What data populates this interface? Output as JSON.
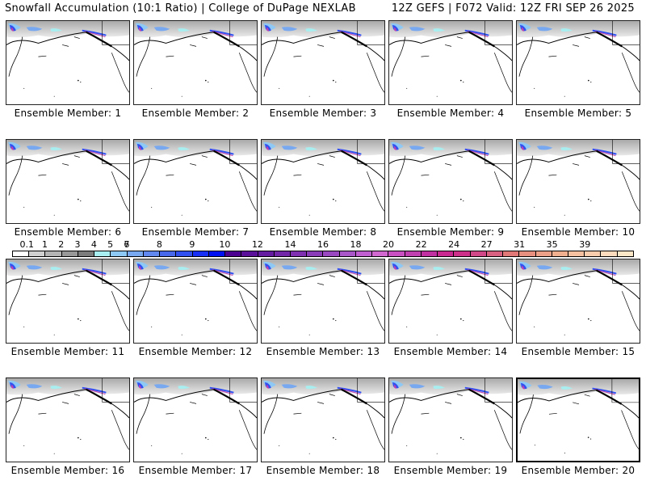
{
  "header": {
    "title": "Snowfall Accumulation (10:1 Ratio) | College of DuPage NEXLAB",
    "run_info": "12Z GEFS | F072 Valid: 12Z FRI SEP 26 2025"
  },
  "members": [
    {
      "label": "Ensemble Member: 1"
    },
    {
      "label": "Ensemble Member: 2"
    },
    {
      "label": "Ensemble Member: 3"
    },
    {
      "label": "Ensemble Member: 4"
    },
    {
      "label": "Ensemble Member: 5"
    },
    {
      "label": "Ensemble Member: 6"
    },
    {
      "label": "Ensemble Member: 7"
    },
    {
      "label": "Ensemble Member: 8"
    },
    {
      "label": "Ensemble Member: 9"
    },
    {
      "label": "Ensemble Member: 10"
    },
    {
      "label": "Ensemble Member: 11"
    },
    {
      "label": "Ensemble Member: 12"
    },
    {
      "label": "Ensemble Member: 13"
    },
    {
      "label": "Ensemble Member: 14"
    },
    {
      "label": "Ensemble Member: 15"
    },
    {
      "label": "Ensemble Member: 16"
    },
    {
      "label": "Ensemble Member: 17"
    },
    {
      "label": "Ensemble Member: 18"
    },
    {
      "label": "Ensemble Member: 19"
    },
    {
      "label": "Ensemble Member: 20"
    }
  ],
  "selected_member": 20,
  "colorbar": {
    "tick_labels": [
      "0.1",
      "1",
      "2",
      "3",
      "4",
      "5",
      "6",
      "7",
      "8",
      "9",
      "10",
      "12",
      "14",
      "16",
      "18",
      "20",
      "22",
      "24",
      "27",
      "31",
      "35",
      "39"
    ],
    "colors": [
      "#ffffff",
      "#d0d0d0",
      "#b4b4b4",
      "#989898",
      "#7c7c7c",
      "#a8eef0",
      "#8ec8f4",
      "#78a8f0",
      "#6088ee",
      "#4868ec",
      "#3050f0",
      "#1830f4",
      "#0010f0",
      "#4c0090",
      "#5a1098",
      "#661ca0",
      "#7226a8",
      "#7e30b0",
      "#8a3cb8",
      "#9a48c0",
      "#a856c8",
      "#c060d0",
      "#d068d0",
      "#c850c0",
      "#c040b0",
      "#c030a0",
      "#c82890",
      "#cc3088",
      "#d04888",
      "#d86080",
      "#e07878",
      "#e89080",
      "#eca088",
      "#f0b090",
      "#f4c0a0",
      "#f8ccac",
      "#fcdcbc",
      "#fce6c8"
    ]
  }
}
